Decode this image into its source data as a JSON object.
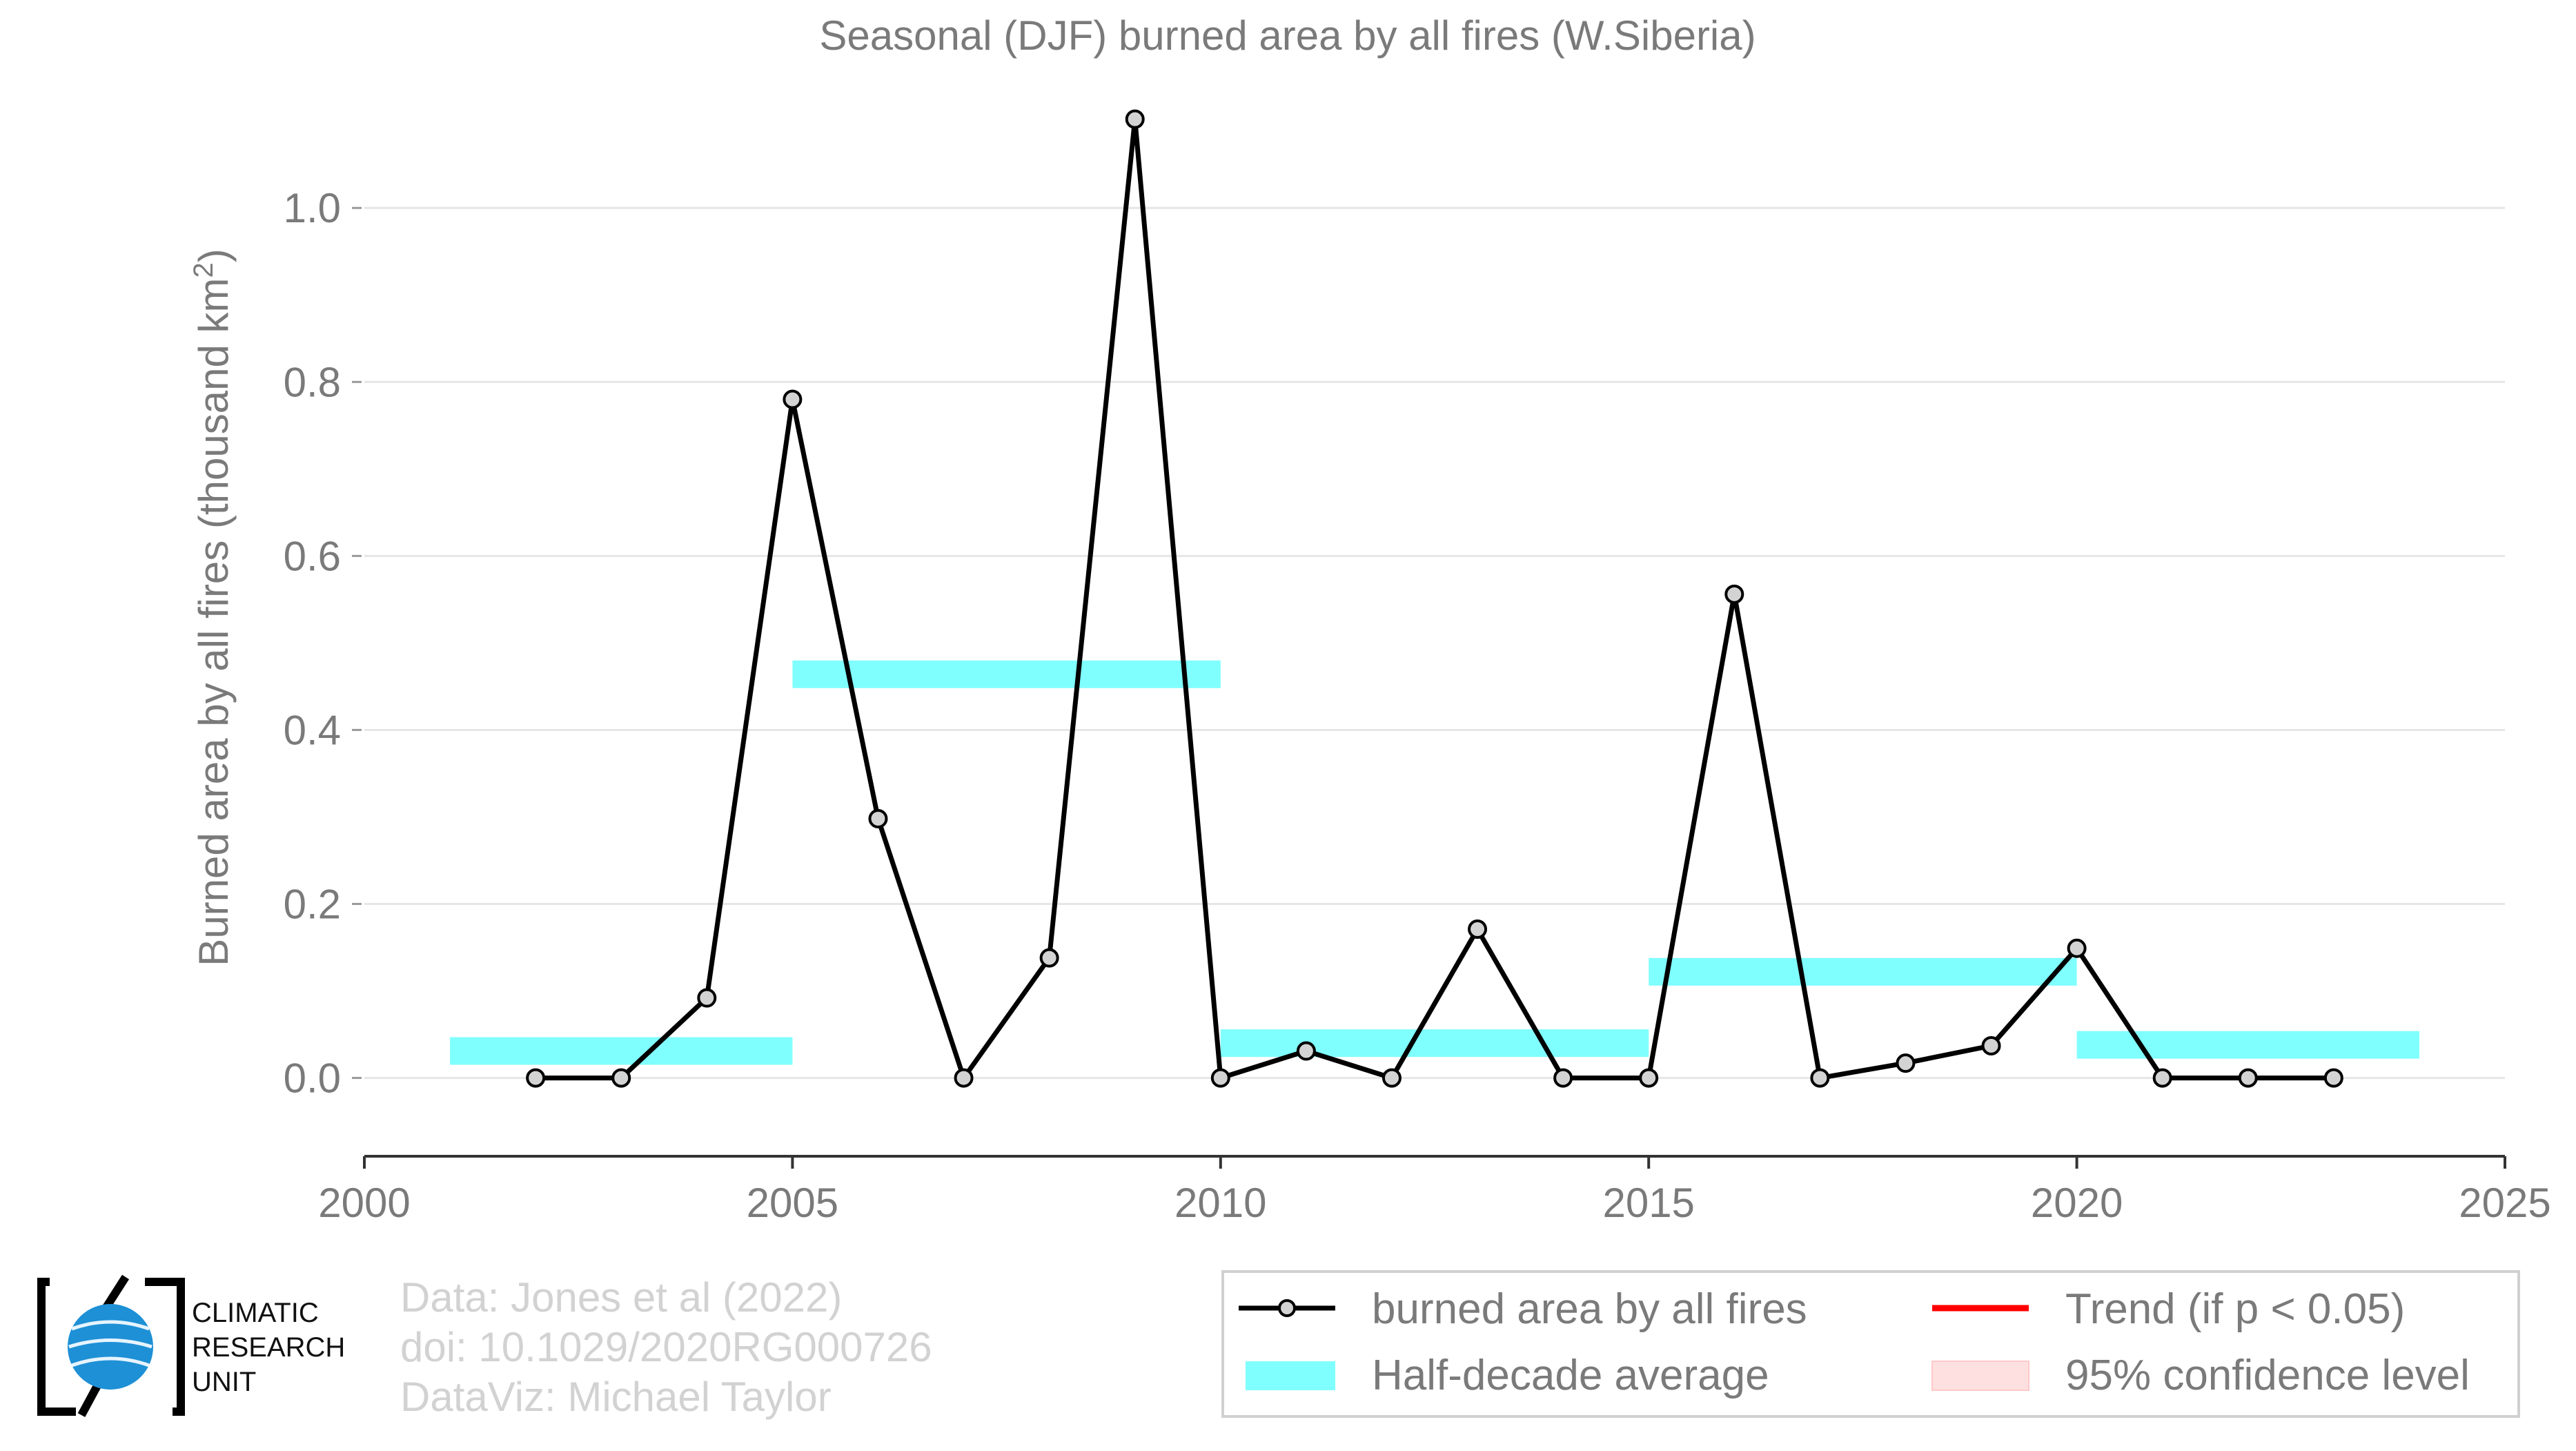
{
  "chart_data": {
    "type": "line",
    "title": "Seasonal (DJF) burned area by all fires (W.Siberia)",
    "ylabel_main": "Burned area by all fires (thousand km",
    "ylabel_sup": "2",
    "ylabel_end": ")",
    "xlabel": "",
    "xlim": [
      2000,
      2025
    ],
    "ylim": [
      -0.09,
      1.12
    ],
    "x_ticks": [
      "2000",
      "2005",
      "2010",
      "2015",
      "2020",
      "2025"
    ],
    "y_ticks": [
      "0.0",
      "0.2",
      "0.4",
      "0.6",
      "0.8",
      "1.0"
    ],
    "grid": "horizontal",
    "series": [
      {
        "name": "burned area by all fires",
        "color": "#000000",
        "marker_fill": "#d3d3d3",
        "x": [
          2002,
          2003,
          2004,
          2005,
          2006,
          2007,
          2008,
          2009,
          2010,
          2011,
          2012,
          2013,
          2014,
          2015,
          2016,
          2017,
          2018,
          2019,
          2020,
          2021,
          2022,
          2023
        ],
        "y": [
          0.0,
          0.0,
          0.092,
          0.78,
          0.298,
          0.0,
          0.138,
          1.102,
          0.0,
          0.031,
          0.0,
          0.171,
          0.0,
          0.0,
          0.556,
          0.0,
          0.017,
          0.037,
          0.149,
          0.0,
          0.0,
          0.0
        ]
      }
    ],
    "half_decade_averages": {
      "name": "Half-decade average",
      "color": "#80ffff",
      "segments": [
        {
          "x0": 2001,
          "x1": 2005,
          "value": 0.031
        },
        {
          "x0": 2005,
          "x1": 2010,
          "value": 0.464
        },
        {
          "x0": 2010,
          "x1": 2015,
          "value": 0.04
        },
        {
          "x0": 2015,
          "x1": 2020,
          "value": 0.122
        },
        {
          "x0": 2020,
          "x1": 2024,
          "value": 0.038
        }
      ]
    },
    "legend": {
      "placement": "bottom-right",
      "items": [
        {
          "label": "burned area by all fires",
          "kind": "line-marker",
          "color": "#000000"
        },
        {
          "label": "Trend (if p < 0.05)",
          "kind": "line",
          "color": "#ff0000"
        },
        {
          "label": "Half-decade average",
          "kind": "patch",
          "color": "#80ffff"
        },
        {
          "label": "95% confidence level",
          "kind": "patch",
          "color": "#ffe0e0"
        }
      ]
    },
    "credits": [
      "Data: Jones et al (2022)",
      "doi: 10.1029/2020RG000726",
      "DataViz: Michael Taylor"
    ],
    "logo_text": [
      "CLIMATIC",
      "RESEARCH",
      "UNIT"
    ]
  }
}
